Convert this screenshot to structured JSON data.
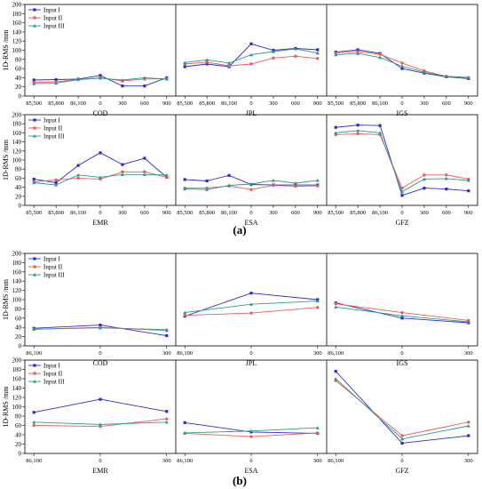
{
  "figure": {
    "part_a_label": "(a)",
    "part_b_label": "(b)",
    "ylabel": "1D-RMS /mm",
    "legend": [
      "Input I",
      "Input II",
      "Input III"
    ],
    "colors": {
      "Input I": "#2b2bd6",
      "Input II": "#ef5a5a",
      "Input III": "#2a9a86"
    }
  },
  "chart_data": [
    {
      "type": "line",
      "part": "a",
      "row": 1,
      "ylabel": "1D-RMS /mm",
      "ylim": [
        0,
        200
      ],
      "yticks": [
        0,
        20,
        40,
        60,
        80,
        100,
        120,
        140,
        160,
        180,
        200
      ],
      "x": [
        "85,500",
        "85,800",
        "86,100",
        "0",
        "300",
        "600",
        "900"
      ],
      "legend_position": "top-left",
      "panels": [
        {
          "name": "COD",
          "series": [
            {
              "name": "Input I",
              "values": [
                35,
                36,
                37,
                45,
                22,
                22,
                40
              ]
            },
            {
              "name": "Input II",
              "values": [
                30,
                31,
                36,
                40,
                33,
                37,
                38
              ]
            },
            {
              "name": "Input III",
              "values": [
                27,
                28,
                36,
                39,
                35,
                40,
                37
              ]
            }
          ]
        },
        {
          "name": "JPL",
          "series": [
            {
              "name": "Input I",
              "values": [
                64,
                70,
                64,
                114,
                100,
                104,
                101
              ]
            },
            {
              "name": "Input II",
              "values": [
                70,
                74,
                66,
                70,
                83,
                87,
                82
              ]
            },
            {
              "name": "Input III",
              "values": [
                73,
                79,
                72,
                90,
                97,
                103,
                94
              ]
            }
          ]
        },
        {
          "name": "IGS",
          "series": [
            {
              "name": "Input I",
              "values": [
                96,
                101,
                93,
                60,
                50,
                42,
                38
              ]
            },
            {
              "name": "Input II",
              "values": [
                94,
                97,
                91,
                72,
                55,
                43,
                40
              ]
            },
            {
              "name": "Input III",
              "values": [
                90,
                93,
                84,
                65,
                52,
                43,
                41
              ]
            }
          ]
        }
      ]
    },
    {
      "type": "line",
      "part": "a",
      "row": 2,
      "ylabel": "1D-RMS /mm",
      "ylim": [
        0,
        200
      ],
      "yticks": [
        0,
        20,
        40,
        60,
        80,
        100,
        120,
        140,
        160,
        180,
        200
      ],
      "x": [
        "85,500",
        "85,800",
        "86,100",
        "0",
        "300",
        "600",
        "900"
      ],
      "legend_position": "top-left",
      "panels": [
        {
          "name": "EMR",
          "series": [
            {
              "name": "Input I",
              "values": [
                58,
                50,
                88,
                116,
                90,
                104,
                62
              ]
            },
            {
              "name": "Input II",
              "values": [
                52,
                56,
                60,
                58,
                74,
                74,
                62
              ]
            },
            {
              "name": "Input III",
              "values": [
                50,
                45,
                67,
                62,
                68,
                68,
                67
              ]
            }
          ]
        },
        {
          "name": "ESA",
          "series": [
            {
              "name": "Input I",
              "values": [
                57,
                54,
                66,
                46,
                45,
                45,
                45
              ]
            },
            {
              "name": "Input II",
              "values": [
                38,
                38,
                43,
                35,
                44,
                42,
                43
              ]
            },
            {
              "name": "Input III",
              "values": [
                36,
                35,
                44,
                47,
                55,
                49,
                55
              ]
            }
          ]
        },
        {
          "name": "GFZ",
          "series": [
            {
              "name": "Input I",
              "values": [
                172,
                177,
                176,
                22,
                38,
                36,
                32
              ]
            },
            {
              "name": "Input II",
              "values": [
                156,
                158,
                156,
                38,
                67,
                67,
                58
              ]
            },
            {
              "name": "Input III",
              "values": [
                160,
                165,
                160,
                30,
                58,
                59,
                55
              ]
            }
          ]
        }
      ]
    },
    {
      "type": "line",
      "part": "b",
      "row": 1,
      "ylabel": "1D-RMS /mm",
      "ylim": [
        0,
        200
      ],
      "yticks": [
        0,
        20,
        40,
        60,
        80,
        100,
        120,
        140,
        160,
        180,
        200
      ],
      "x": [
        "86,100",
        "0",
        "300"
      ],
      "legend_position": "top-left",
      "panels": [
        {
          "name": "COD",
          "series": [
            {
              "name": "Input I",
              "values": [
                38,
                45,
                22
              ]
            },
            {
              "name": "Input II",
              "values": [
                36,
                40,
                33
              ]
            },
            {
              "name": "Input III",
              "values": [
                36,
                39,
                35
              ]
            }
          ]
        },
        {
          "name": "JPL",
          "series": [
            {
              "name": "Input I",
              "values": [
                64,
                114,
                100
              ]
            },
            {
              "name": "Input II",
              "values": [
                66,
                71,
                83
              ]
            },
            {
              "name": "Input III",
              "values": [
                72,
                90,
                97
              ]
            }
          ]
        },
        {
          "name": "IGS",
          "series": [
            {
              "name": "Input I",
              "values": [
                93,
                60,
                50
              ]
            },
            {
              "name": "Input II",
              "values": [
                91,
                72,
                55
              ]
            },
            {
              "name": "Input III",
              "values": [
                84,
                65,
                52
              ]
            }
          ]
        }
      ]
    },
    {
      "type": "line",
      "part": "b",
      "row": 2,
      "ylabel": "1D-RMS /mm",
      "ylim": [
        0,
        200
      ],
      "yticks": [
        0,
        20,
        40,
        60,
        80,
        100,
        120,
        140,
        160,
        180,
        200
      ],
      "x": [
        "86,100",
        "0",
        "300"
      ],
      "legend_position": "top-left",
      "panels": [
        {
          "name": "EMR",
          "series": [
            {
              "name": "Input I",
              "values": [
                88,
                116,
                90
              ]
            },
            {
              "name": "Input II",
              "values": [
                60,
                58,
                74
              ]
            },
            {
              "name": "Input III",
              "values": [
                67,
                62,
                67
              ]
            }
          ]
        },
        {
          "name": "ESA",
          "series": [
            {
              "name": "Input I",
              "values": [
                66,
                46,
                43
              ]
            },
            {
              "name": "Input II",
              "values": [
                43,
                36,
                44
              ]
            },
            {
              "name": "Input III",
              "values": [
                44,
                48,
                55
              ]
            }
          ]
        },
        {
          "name": "GFZ",
          "series": [
            {
              "name": "Input I",
              "values": [
                176,
                22,
                38
              ]
            },
            {
              "name": "Input II",
              "values": [
                156,
                38,
                67
              ]
            },
            {
              "name": "Input III",
              "values": [
                160,
                31,
                59
              ]
            }
          ]
        }
      ]
    }
  ]
}
